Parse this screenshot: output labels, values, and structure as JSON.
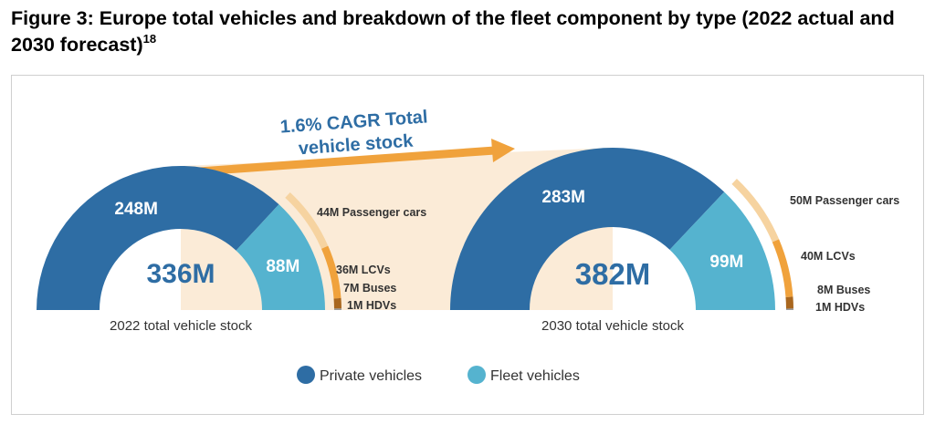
{
  "figure": {
    "title": "Figure 3: Europe total vehicles and breakdown of the fleet component by type (2022 actual and 2030 forecast)",
    "footnote": "18"
  },
  "chart_data": {
    "type": "pie",
    "variant": "semicircle donut with fleet breakdown arc",
    "annotation": "1.6% CAGR Total vehicle stock",
    "annotation_lines": [
      "1.6% CAGR Total",
      "vehicle stock"
    ],
    "unit": "M",
    "legend": {
      "position": "bottom",
      "items": [
        {
          "label": "Private vehicles",
          "color": "#2e6da4"
        },
        {
          "label": "Fleet vehicles",
          "color": "#55b3cf"
        }
      ]
    },
    "panels": [
      {
        "caption": "2022 total vehicle stock",
        "total": 336,
        "total_label": "336M",
        "slices": [
          {
            "name": "Private vehicles",
            "value": 248,
            "label": "248M",
            "color": "#2e6da4"
          },
          {
            "name": "Fleet vehicles",
            "value": 88,
            "label": "88M",
            "color": "#55b3cf"
          }
        ],
        "fleet_breakdown": [
          {
            "name": "Passenger cars",
            "value": 44,
            "label": "44M Passenger cars",
            "color": "#f6d3a0"
          },
          {
            "name": "LCVs",
            "value": 36,
            "label": "36M LCVs",
            "color": "#f0a23c"
          },
          {
            "name": "Buses",
            "value": 7,
            "label": "7M Buses",
            "color": "#a9671f"
          },
          {
            "name": "HDVs",
            "value": 1,
            "label": "1M  HDVs",
            "color": "#9a9a9a"
          }
        ]
      },
      {
        "caption": "2030 total vehicle stock",
        "total": 382,
        "total_label": "382M",
        "slices": [
          {
            "name": "Private vehicles",
            "value": 283,
            "label": "283M",
            "color": "#2e6da4"
          },
          {
            "name": "Fleet vehicles",
            "value": 99,
            "label": "99M",
            "color": "#55b3cf"
          }
        ],
        "fleet_breakdown": [
          {
            "name": "Passenger cars",
            "value": 50,
            "label": "50M Passenger cars",
            "color": "#f6d3a0"
          },
          {
            "name": "LCVs",
            "value": 40,
            "label": "40M LCVs",
            "color": "#f0a23c"
          },
          {
            "name": "Buses",
            "value": 8,
            "label": "8M Buses",
            "color": "#a9671f"
          },
          {
            "name": "HDVs",
            "value": 1,
            "label": "1M HDVs",
            "color": "#9a9a9a"
          }
        ]
      }
    ],
    "colors": {
      "total_text": "#2e6da4",
      "annotation_text": "#2e6da4",
      "arrow": "#f0a23c",
      "band": "#fbebd7",
      "caption_text": "#333333",
      "breakdown_text": "#333333",
      "slice_text": "#ffffff"
    }
  }
}
